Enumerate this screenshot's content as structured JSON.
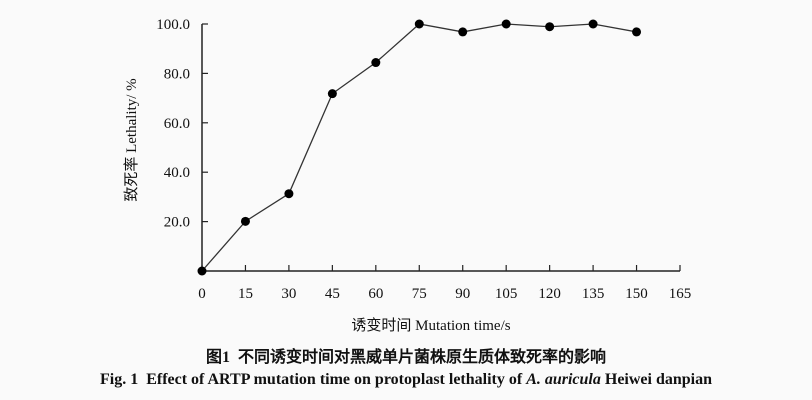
{
  "chart_data": {
    "type": "line",
    "title": "",
    "xlabel": "诱变时间 Mutation time/s",
    "ylabel": "致死率 Lethality/ %",
    "x": [
      0,
      15,
      30,
      45,
      60,
      75,
      90,
      105,
      120,
      135,
      150
    ],
    "series": [
      {
        "name": "Lethality",
        "values": [
          0,
          20.1,
          31.3,
          71.8,
          84.4,
          100,
          96.8,
          100,
          98.9,
          100,
          96.8
        ]
      }
    ],
    "xlim": [
      0,
      165
    ],
    "ylim": [
      0,
      100
    ],
    "xticks": [
      "0",
      "15",
      "30",
      "45",
      "60",
      "75",
      "90",
      "105",
      "120",
      "135",
      "150",
      "165"
    ],
    "yticks": [
      "20.0",
      "40.0",
      "60.0",
      "80.0",
      "100.0"
    ],
    "grid": false,
    "line_color": "#333333",
    "marker_color": "#000000"
  },
  "caption": {
    "cn_label": "图1",
    "cn_text": "不同诱变时间对黑威单片菌株原生质体致死率的影响",
    "en_label": "Fig. 1",
    "en_text_1": "Effect of ARTP mutation time on protoplast lethality of",
    "en_species": "A. auricula",
    "en_text_2": "Heiwei danpian"
  }
}
